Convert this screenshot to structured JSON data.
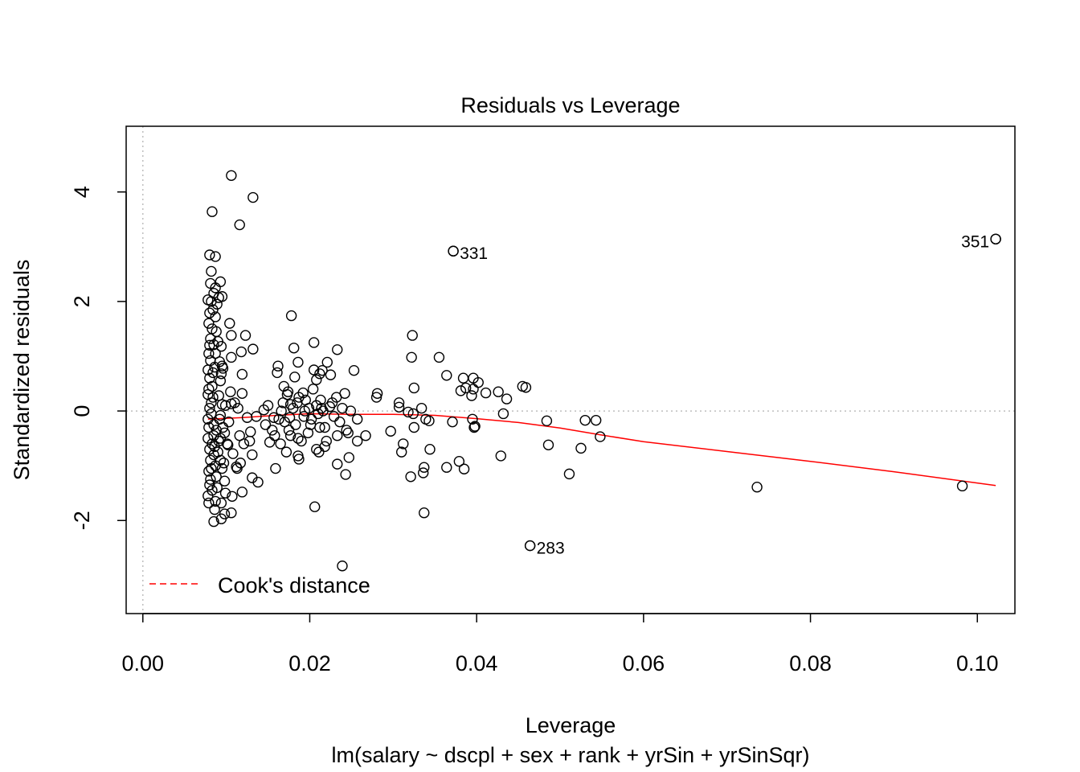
{
  "chart_data": {
    "type": "scatter",
    "title": "Residuals vs Leverage",
    "xlabel": "Leverage",
    "subtitle": "lm(salary ~ dscpl + sex + rank + yrSin + yrSinSqr)",
    "ylabel": "Standardized residuals",
    "xlim": [
      -0.002,
      0.1045
    ],
    "ylim": [
      -3.7,
      5.2
    ],
    "x_ticks": [
      0.0,
      0.02,
      0.04,
      0.06,
      0.08,
      0.1
    ],
    "x_tick_labels": [
      "0.00",
      "0.02",
      "0.04",
      "0.06",
      "0.08",
      "0.10"
    ],
    "y_ticks": [
      -2,
      0,
      2,
      4
    ],
    "y_tick_labels": [
      "-2",
      "0",
      "2",
      "4"
    ],
    "reference_lines": {
      "x": 0,
      "y": 0
    },
    "legend": {
      "label": "Cook's distance",
      "position": "bottom-left",
      "line_color": "#ff0000",
      "line_style": "dashed"
    },
    "point_color": "#000000",
    "smooth_color": "#ff0000",
    "labeled_points": [
      {
        "label": "331",
        "x": 0.0372,
        "y": 2.92,
        "side": "right"
      },
      {
        "label": "351",
        "x": 0.1022,
        "y": 3.14,
        "side": "left"
      },
      {
        "label": "283",
        "x": 0.0464,
        "y": -2.46,
        "side": "right"
      }
    ],
    "points": [
      [
        0.0106,
        4.3
      ],
      [
        0.0132,
        3.9
      ],
      [
        0.0083,
        3.64
      ],
      [
        0.0116,
        3.4
      ],
      [
        0.0372,
        2.92
      ],
      [
        0.1022,
        3.14
      ],
      [
        0.008,
        2.85
      ],
      [
        0.0087,
        2.82
      ],
      [
        0.0082,
        2.55
      ],
      [
        0.0093,
        2.36
      ],
      [
        0.0081,
        2.33
      ],
      [
        0.0087,
        2.25
      ],
      [
        0.0085,
        2.15
      ],
      [
        0.0091,
        2.07
      ],
      [
        0.0095,
        2.09
      ],
      [
        0.0078,
        2.03
      ],
      [
        0.0082,
        2.0
      ],
      [
        0.0089,
        1.95
      ],
      [
        0.0084,
        1.85
      ],
      [
        0.008,
        1.79
      ],
      [
        0.0087,
        1.72
      ],
      [
        0.0178,
        1.74
      ],
      [
        0.0079,
        1.6
      ],
      [
        0.0104,
        1.6
      ],
      [
        0.0083,
        1.5
      ],
      [
        0.0088,
        1.45
      ],
      [
        0.0123,
        1.38
      ],
      [
        0.0106,
        1.38
      ],
      [
        0.0323,
        1.38
      ],
      [
        0.0081,
        1.32
      ],
      [
        0.009,
        1.27
      ],
      [
        0.0205,
        1.25
      ],
      [
        0.0085,
        1.21
      ],
      [
        0.0094,
        1.18
      ],
      [
        0.0181,
        1.15
      ],
      [
        0.0132,
        1.13
      ],
      [
        0.0233,
        1.12
      ],
      [
        0.0118,
        1.08
      ],
      [
        0.0087,
        1.05
      ],
      [
        0.0106,
        0.98
      ],
      [
        0.0322,
        0.98
      ],
      [
        0.0355,
        0.98
      ],
      [
        0.0081,
        0.92
      ],
      [
        0.0092,
        0.9
      ],
      [
        0.0186,
        0.89
      ],
      [
        0.0221,
        0.89
      ],
      [
        0.0162,
        0.82
      ],
      [
        0.0086,
        0.8
      ],
      [
        0.0096,
        0.78
      ],
      [
        0.0205,
        0.75
      ],
      [
        0.0215,
        0.74
      ],
      [
        0.0253,
        0.74
      ],
      [
        0.0161,
        0.7
      ],
      [
        0.0084,
        0.7
      ],
      [
        0.0119,
        0.67
      ],
      [
        0.0225,
        0.66
      ],
      [
        0.0364,
        0.65
      ],
      [
        0.0182,
        0.62
      ],
      [
        0.0384,
        0.6
      ],
      [
        0.0396,
        0.6
      ],
      [
        0.0208,
        0.57
      ],
      [
        0.0402,
        0.52
      ],
      [
        0.0455,
        0.45
      ],
      [
        0.0459,
        0.43
      ],
      [
        0.0325,
        0.42
      ],
      [
        0.0387,
        0.42
      ],
      [
        0.0396,
        0.4
      ],
      [
        0.0381,
        0.37
      ],
      [
        0.0426,
        0.35
      ],
      [
        0.0174,
        0.35
      ],
      [
        0.0192,
        0.33
      ],
      [
        0.0242,
        0.32
      ],
      [
        0.0281,
        0.32
      ],
      [
        0.0411,
        0.33
      ],
      [
        0.0078,
        0.3
      ],
      [
        0.0091,
        0.28
      ],
      [
        0.0119,
        0.32
      ],
      [
        0.0173,
        0.3
      ],
      [
        0.0187,
        0.25
      ],
      [
        0.0232,
        0.25
      ],
      [
        0.028,
        0.25
      ],
      [
        0.0394,
        0.28
      ],
      [
        0.0436,
        0.22
      ],
      [
        0.0213,
        0.2
      ],
      [
        0.0307,
        0.15
      ],
      [
        0.0082,
        0.15
      ],
      [
        0.0095,
        0.12
      ],
      [
        0.0106,
        0.13
      ],
      [
        0.0177,
        0.12
      ],
      [
        0.0208,
        0.1
      ],
      [
        0.0224,
        0.08
      ],
      [
        0.0199,
        0.05
      ],
      [
        0.0307,
        0.07
      ],
      [
        0.0334,
        0.05
      ],
      [
        0.0145,
        0.02
      ],
      [
        0.0166,
        0.0
      ],
      [
        0.0194,
        0.0
      ],
      [
        0.0216,
        0.0
      ],
      [
        0.0318,
        -0.02
      ],
      [
        0.0324,
        -0.05
      ],
      [
        0.0432,
        -0.05
      ],
      [
        0.0082,
        -0.05
      ],
      [
        0.0093,
        -0.08
      ],
      [
        0.0136,
        -0.1
      ],
      [
        0.0157,
        -0.12
      ],
      [
        0.0229,
        -0.1
      ],
      [
        0.0257,
        -0.15
      ],
      [
        0.0339,
        -0.15
      ],
      [
        0.0343,
        -0.18
      ],
      [
        0.0371,
        -0.2
      ],
      [
        0.0395,
        -0.15
      ],
      [
        0.0484,
        -0.18
      ],
      [
        0.053,
        -0.17
      ],
      [
        0.0543,
        -0.17
      ],
      [
        0.0398,
        -0.28
      ],
      [
        0.0397,
        -0.3
      ],
      [
        0.0088,
        -0.35
      ],
      [
        0.0098,
        -0.4
      ],
      [
        0.0129,
        -0.38
      ],
      [
        0.0175,
        -0.35
      ],
      [
        0.0212,
        -0.3
      ],
      [
        0.0244,
        -0.35
      ],
      [
        0.0267,
        -0.45
      ],
      [
        0.0297,
        -0.37
      ],
      [
        0.0325,
        -0.3
      ],
      [
        0.0085,
        -0.45
      ],
      [
        0.0093,
        -0.5
      ],
      [
        0.0152,
        -0.57
      ],
      [
        0.0186,
        -0.5
      ],
      [
        0.0233,
        -0.45
      ],
      [
        0.0257,
        -0.55
      ],
      [
        0.0344,
        -0.7
      ],
      [
        0.0312,
        -0.6
      ],
      [
        0.0486,
        -0.62
      ],
      [
        0.0525,
        -0.68
      ],
      [
        0.0548,
        -0.47
      ],
      [
        0.0083,
        -0.6
      ],
      [
        0.0102,
        -0.62
      ],
      [
        0.0121,
        -0.6
      ],
      [
        0.0172,
        -0.75
      ],
      [
        0.0186,
        -0.82
      ],
      [
        0.0208,
        -0.7
      ],
      [
        0.0211,
        -0.75
      ],
      [
        0.031,
        -0.75
      ],
      [
        0.0429,
        -0.82
      ],
      [
        0.0085,
        -0.8
      ],
      [
        0.0093,
        -0.9
      ],
      [
        0.0117,
        -0.95
      ],
      [
        0.0131,
        -0.8
      ],
      [
        0.0187,
        -0.88
      ],
      [
        0.0233,
        -0.97
      ],
      [
        0.0247,
        -0.85
      ],
      [
        0.0379,
        -0.92
      ],
      [
        0.0364,
        -1.03
      ],
      [
        0.0337,
        -1.03
      ],
      [
        0.0385,
        -1.06
      ],
      [
        0.0082,
        -1.05
      ],
      [
        0.0095,
        -1.05
      ],
      [
        0.0113,
        -1.05
      ],
      [
        0.0159,
        -1.05
      ],
      [
        0.0243,
        -1.16
      ],
      [
        0.0321,
        -1.2
      ],
      [
        0.0336,
        -1.13
      ],
      [
        0.0511,
        -1.15
      ],
      [
        0.0081,
        -1.25
      ],
      [
        0.0098,
        -1.28
      ],
      [
        0.0131,
        -1.22
      ],
      [
        0.0138,
        -1.3
      ],
      [
        0.0736,
        -1.39
      ],
      [
        0.0982,
        -1.37
      ],
      [
        0.0083,
        -1.45
      ],
      [
        0.0099,
        -1.5
      ],
      [
        0.0119,
        -1.48
      ],
      [
        0.0107,
        -1.56
      ],
      [
        0.0079,
        -1.68
      ],
      [
        0.0087,
        -1.65
      ],
      [
        0.0094,
        -1.68
      ],
      [
        0.0086,
        -1.8
      ],
      [
        0.0098,
        -1.88
      ],
      [
        0.0106,
        -1.86
      ],
      [
        0.0206,
        -1.75
      ],
      [
        0.0337,
        -1.86
      ],
      [
        0.0085,
        -2.02
      ],
      [
        0.0094,
        -1.97
      ],
      [
        0.0464,
        -2.46
      ],
      [
        0.0239,
        -2.83
      ],
      [
        0.0078,
        -0.5
      ],
      [
        0.008,
        -0.7
      ],
      [
        0.0081,
        -0.9
      ],
      [
        0.0079,
        -1.1
      ],
      [
        0.008,
        -1.35
      ],
      [
        0.0078,
        -1.55
      ],
      [
        0.0078,
        -0.15
      ],
      [
        0.0079,
        -0.3
      ],
      [
        0.008,
        0.05
      ],
      [
        0.0079,
        0.4
      ],
      [
        0.008,
        0.6
      ],
      [
        0.0078,
        0.75
      ],
      [
        0.0079,
        1.05
      ],
      [
        0.008,
        1.2
      ],
      [
        0.0083,
        0.45
      ],
      [
        0.0084,
        0.25
      ],
      [
        0.0085,
        -0.25
      ],
      [
        0.0086,
        -0.65
      ],
      [
        0.0087,
        -1.0
      ],
      [
        0.0088,
        -1.2
      ],
      [
        0.0089,
        -1.4
      ],
      [
        0.009,
        -0.75
      ],
      [
        0.0091,
        -0.55
      ],
      [
        0.0092,
        -0.15
      ],
      [
        0.0093,
        0.55
      ],
      [
        0.0094,
        0.68
      ],
      [
        0.0095,
        0.82
      ],
      [
        0.0096,
        -0.3
      ],
      [
        0.0097,
        -0.95
      ],
      [
        0.0099,
        0.1
      ],
      [
        0.0101,
        -0.6
      ],
      [
        0.0103,
        -0.2
      ],
      [
        0.0105,
        0.35
      ],
      [
        0.0108,
        -0.78
      ],
      [
        0.011,
        0.15
      ],
      [
        0.0112,
        -1.02
      ],
      [
        0.0114,
        0.05
      ],
      [
        0.0116,
        -0.45
      ],
      [
        0.0125,
        -0.12
      ],
      [
        0.0128,
        -0.55
      ],
      [
        0.0147,
        -0.25
      ],
      [
        0.015,
        0.1
      ],
      [
        0.0155,
        -0.35
      ],
      [
        0.0165,
        -0.6
      ],
      [
        0.0168,
        0.15
      ],
      [
        0.017,
        -0.2
      ],
      [
        0.0177,
        -0.45
      ],
      [
        0.018,
        0.05
      ],
      [
        0.0183,
        -0.25
      ],
      [
        0.019,
        -0.55
      ],
      [
        0.0195,
        0.2
      ],
      [
        0.0198,
        -0.4
      ],
      [
        0.0202,
        -0.15
      ],
      [
        0.0204,
        0.4
      ],
      [
        0.021,
        -0.05
      ],
      [
        0.0214,
        0.05
      ],
      [
        0.0218,
        -0.3
      ],
      [
        0.022,
        -0.55
      ],
      [
        0.0227,
        0.15
      ],
      [
        0.0236,
        -0.2
      ],
      [
        0.0239,
        0.05
      ],
      [
        0.0246,
        -0.4
      ],
      [
        0.0249,
        0.0
      ],
      [
        0.0218,
        -0.65
      ],
      [
        0.0201,
        -0.25
      ],
      [
        0.0193,
        -0.1
      ],
      [
        0.0185,
        0.15
      ],
      [
        0.0176,
        -0.12
      ],
      [
        0.0169,
        0.45
      ],
      [
        0.0163,
        -0.15
      ],
      [
        0.0158,
        -0.45
      ],
      [
        0.0212,
        0.68
      ]
    ],
    "smooth": [
      [
        0.0078,
        -0.15
      ],
      [
        0.012,
        -0.12
      ],
      [
        0.016,
        -0.08
      ],
      [
        0.02,
        -0.05
      ],
      [
        0.025,
        -0.06
      ],
      [
        0.03,
        -0.06
      ],
      [
        0.035,
        -0.08
      ],
      [
        0.04,
        -0.14
      ],
      [
        0.045,
        -0.21
      ],
      [
        0.05,
        -0.31
      ],
      [
        0.055,
        -0.44
      ],
      [
        0.06,
        -0.56
      ],
      [
        0.07,
        -0.74
      ],
      [
        0.08,
        -0.92
      ],
      [
        0.09,
        -1.11
      ],
      [
        0.1022,
        -1.36
      ]
    ]
  }
}
